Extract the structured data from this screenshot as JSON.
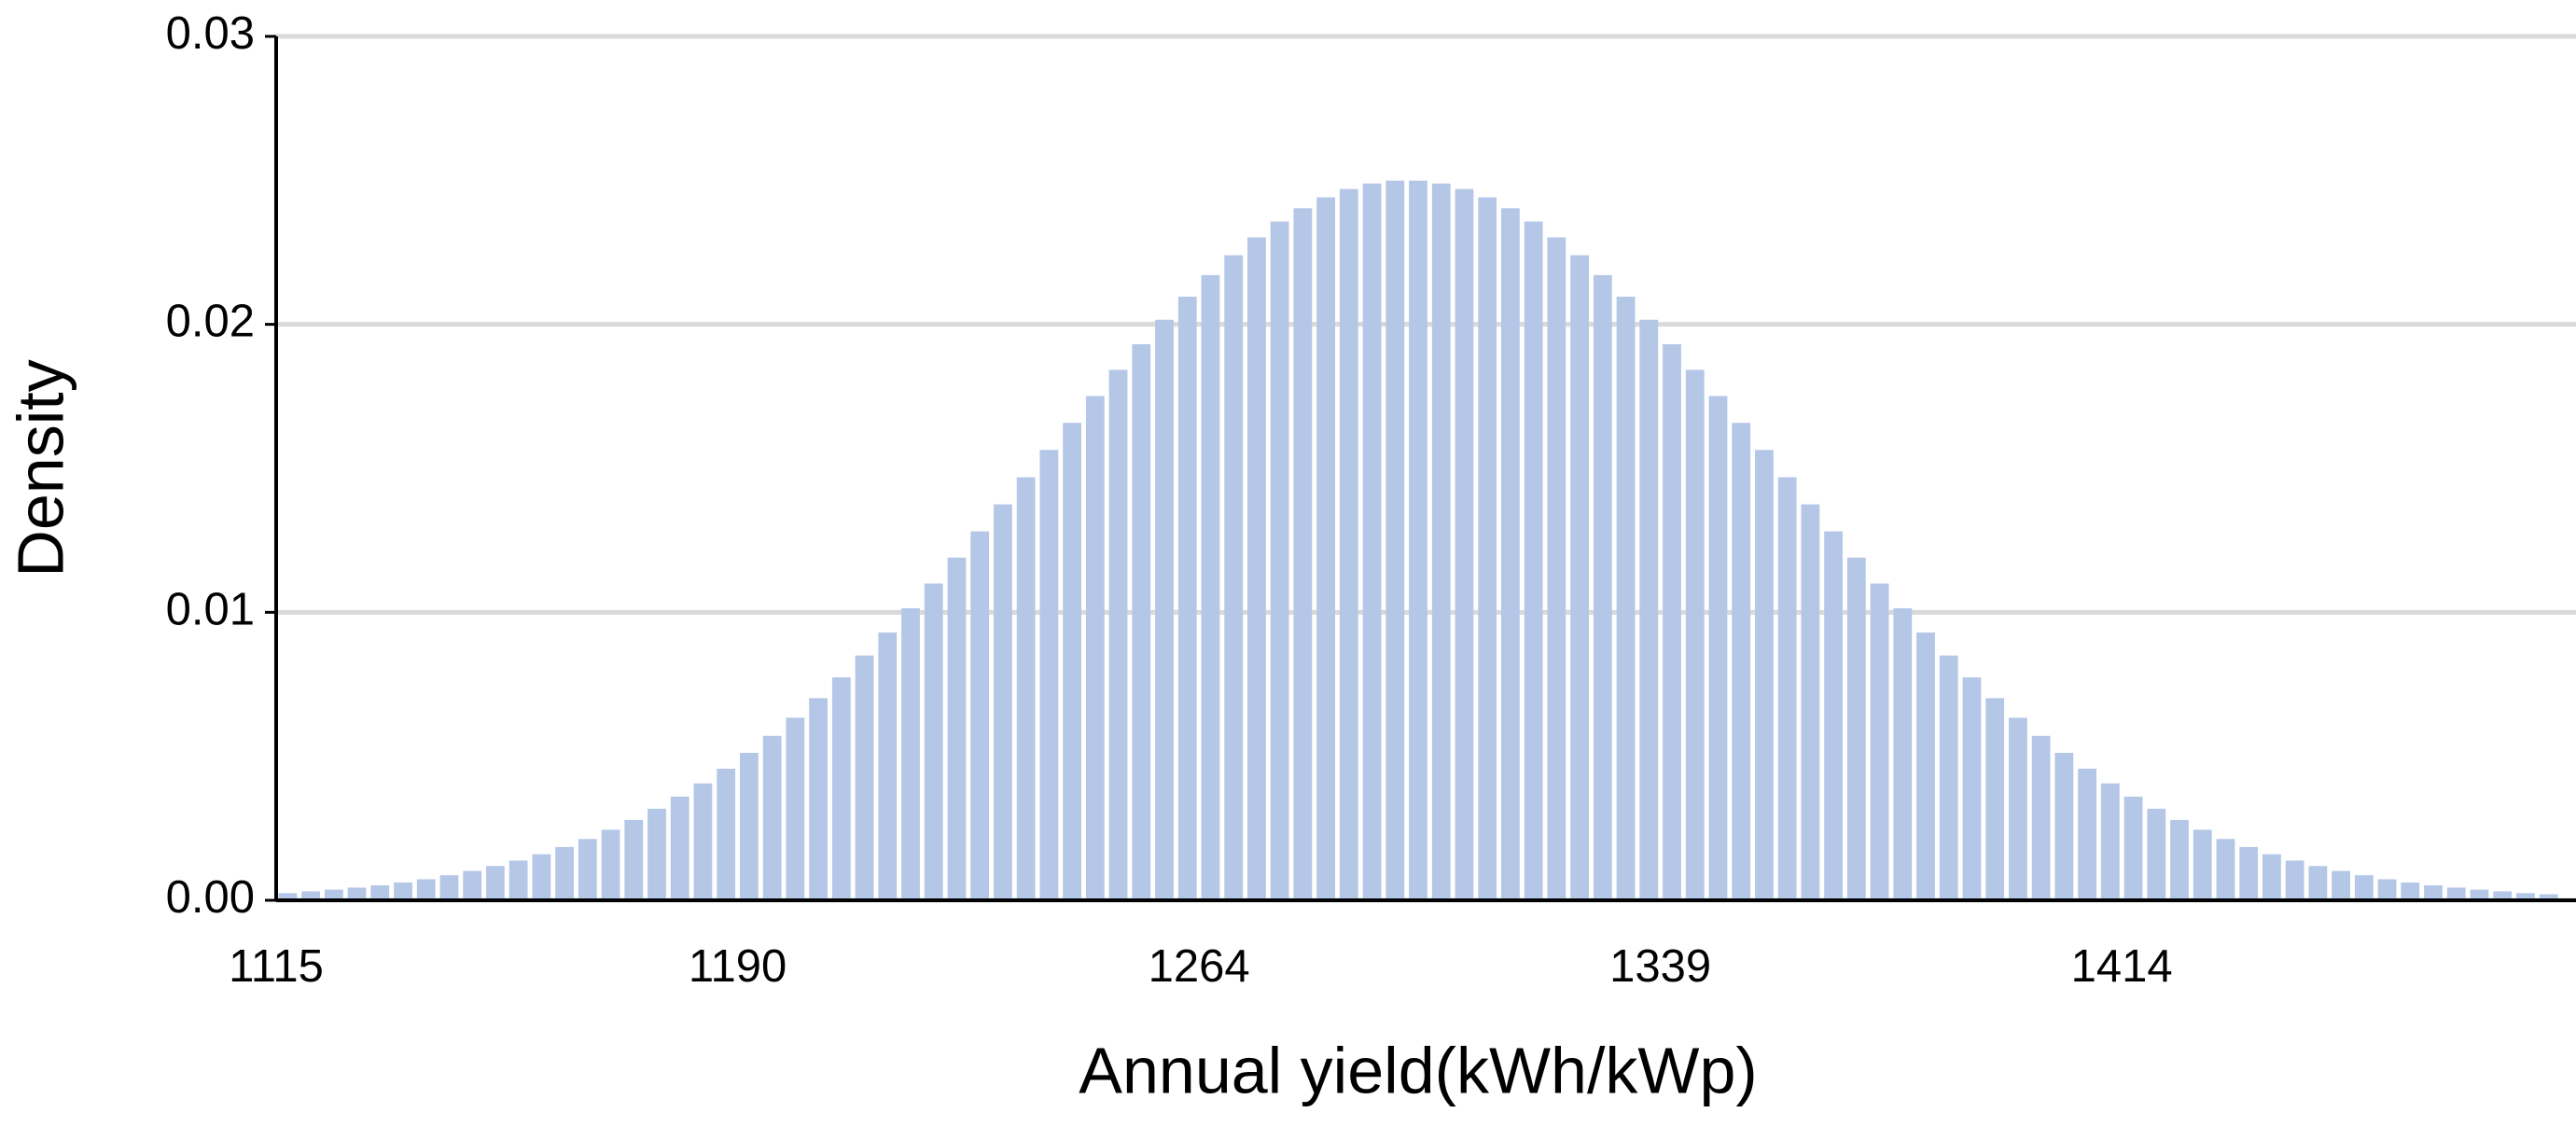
{
  "chart_data": {
    "type": "bar",
    "xlabel": "Annual yield(kWh/kWp)",
    "ylabel": "Density",
    "color": "#b4c7e7",
    "grid": true,
    "ylim": [
      0,
      0.03
    ],
    "yticks": [
      {
        "value": 0,
        "label": "0.00"
      },
      0.01,
      0.02,
      0.03
    ],
    "categories": [
      "1115",
      null,
      null,
      null,
      null,
      null,
      null,
      null,
      null,
      null,
      null,
      null,
      null,
      null,
      null,
      null,
      null,
      null,
      null,
      null,
      "1190",
      null,
      null,
      null,
      null,
      null,
      null,
      null,
      null,
      null,
      null,
      null,
      null,
      null,
      null,
      null,
      null,
      null,
      null,
      null,
      "1264",
      null,
      null,
      null,
      null,
      null,
      null,
      null,
      null,
      null,
      null,
      null,
      null,
      null,
      null,
      null,
      null,
      null,
      null,
      null,
      "1339",
      null,
      null,
      null,
      null,
      null,
      null,
      null,
      null,
      null,
      null,
      null,
      null,
      null,
      null,
      null,
      null,
      null,
      null,
      null,
      "1414",
      null,
      null,
      null,
      null,
      null,
      null,
      null,
      null,
      null,
      null,
      null,
      null,
      null,
      null,
      null,
      null,
      null,
      null
    ],
    "values": [
      0.00025,
      0.00031,
      0.00037,
      0.00044,
      0.00052,
      0.00062,
      0.00073,
      0.00087,
      0.00102,
      0.00119,
      0.00138,
      0.0016,
      0.00185,
      0.00213,
      0.00245,
      0.00279,
      0.00318,
      0.0036,
      0.00406,
      0.00457,
      0.00512,
      0.00571,
      0.00634,
      0.00702,
      0.00774,
      0.0085,
      0.0093,
      0.01014,
      0.011,
      0.0119,
      0.01281,
      0.01375,
      0.01469,
      0.01564,
      0.01658,
      0.01751,
      0.01842,
      0.01931,
      0.02016,
      0.02096,
      0.02171,
      0.0224,
      0.02302,
      0.02357,
      0.02403,
      0.02441,
      0.0247,
      0.02489,
      0.02499,
      0.02499,
      0.02489,
      0.0247,
      0.02441,
      0.02403,
      0.02357,
      0.02302,
      0.0224,
      0.02171,
      0.02096,
      0.02016,
      0.01931,
      0.01842,
      0.01751,
      0.01658,
      0.01564,
      0.01469,
      0.01375,
      0.01281,
      0.0119,
      0.011,
      0.01014,
      0.0093,
      0.0085,
      0.00774,
      0.00702,
      0.00634,
      0.00571,
      0.00512,
      0.00457,
      0.00406,
      0.0036,
      0.00318,
      0.00279,
      0.00245,
      0.00213,
      0.00185,
      0.0016,
      0.00138,
      0.00119,
      0.00102,
      0.00087,
      0.00073,
      0.00062,
      0.00052,
      0.00044,
      0.00037,
      0.00031,
      0.00025,
      0.00021
    ]
  }
}
